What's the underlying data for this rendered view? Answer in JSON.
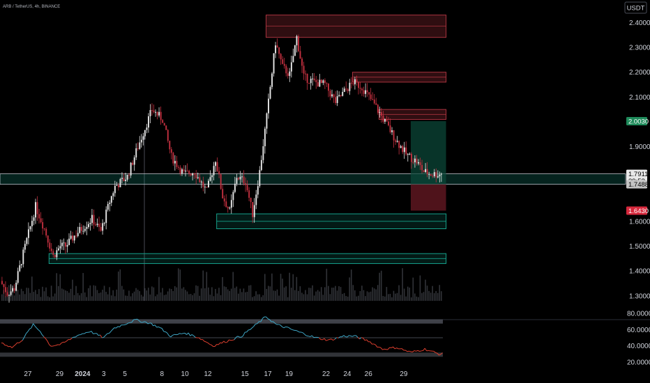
{
  "header": {
    "symbol": "ARB / TetherUS, 4h, BINANCE"
  },
  "currency_button": "USDT",
  "colors": {
    "bg": "#000000",
    "up": "#e8e8e8",
    "down": "#c2303f",
    "demand": "#15a08a",
    "supply": "#a8323e",
    "rsi_up": "#3fa9c9",
    "rsi_down": "#e0402f"
  },
  "price_tags": [
    {
      "value": 2.003,
      "label": "2.0030",
      "color": "#1e8a5a",
      "text_color": "#ffffff"
    },
    {
      "value": 1.7911,
      "label": "1.7911",
      "sublabel": "39:53",
      "color": "#e8e8e8",
      "text_color": "#000000"
    },
    {
      "value": 1.7488,
      "label": "1.7488",
      "color": "#c4c4c4",
      "text_color": "#000000"
    },
    {
      "value": 1.643,
      "label": "1.6430",
      "color": "#d6283c",
      "text_color": "#ffffff"
    }
  ],
  "chart_data": [
    {
      "type": "candlestick",
      "ylim": [
        1.28,
        2.44
      ],
      "y_ticks": [
        "2.4000",
        "2.3000",
        "2.2000",
        "2.1000",
        "1.9000",
        "1.6000",
        "1.5000",
        "1.4000",
        "1.3000"
      ],
      "y_tick_values": [
        2.4,
        2.3,
        2.2,
        2.1,
        1.9,
        1.6,
        1.5,
        1.4,
        1.3
      ],
      "x_ticks": [
        "27",
        "29",
        "2024",
        "3",
        "5",
        "8",
        "10",
        "12",
        "15",
        "17",
        "19",
        "22",
        "24",
        "26",
        "29"
      ],
      "x_tick_positions": [
        15,
        33,
        46,
        58,
        70,
        91,
        104,
        117,
        138,
        151,
        163,
        184,
        196,
        208,
        228
      ],
      "n_bars": 250,
      "waypoints": [
        [
          0,
          1.36
        ],
        [
          4,
          1.31
        ],
        [
          8,
          1.33
        ],
        [
          13,
          1.47
        ],
        [
          20,
          1.66
        ],
        [
          25,
          1.57
        ],
        [
          30,
          1.46
        ],
        [
          34,
          1.5
        ],
        [
          37,
          1.5
        ],
        [
          43,
          1.55
        ],
        [
          52,
          1.61
        ],
        [
          57,
          1.56
        ],
        [
          62,
          1.68
        ],
        [
          65,
          1.74
        ],
        [
          72,
          1.78
        ],
        [
          78,
          1.9
        ],
        [
          86,
          2.05
        ],
        [
          92,
          2.01
        ],
        [
          97,
          1.86
        ],
        [
          104,
          1.79
        ],
        [
          110,
          1.8
        ],
        [
          117,
          1.72
        ],
        [
          122,
          1.85
        ],
        [
          126,
          1.7
        ],
        [
          130,
          1.64
        ],
        [
          134,
          1.78
        ],
        [
          139,
          1.76
        ],
        [
          143,
          1.63
        ],
        [
          147,
          1.8
        ],
        [
          151,
          2.02
        ],
        [
          156,
          2.32
        ],
        [
          160,
          2.22
        ],
        [
          164,
          2.19
        ],
        [
          168,
          2.34
        ],
        [
          172,
          2.18
        ],
        [
          178,
          2.16
        ],
        [
          184,
          2.15
        ],
        [
          190,
          2.08
        ],
        [
          196,
          2.13
        ],
        [
          200,
          2.16
        ],
        [
          205,
          2.14
        ],
        [
          212,
          2.07
        ],
        [
          218,
          2.0
        ],
        [
          224,
          1.93
        ],
        [
          230,
          1.87
        ],
        [
          236,
          1.84
        ],
        [
          240,
          1.8
        ],
        [
          244,
          1.79
        ],
        [
          250,
          1.79
        ]
      ],
      "last_price": 1.7911,
      "supply_zones": [
        {
          "y1": 2.43,
          "y2": 2.34,
          "x_from": 150,
          "x_to": 252
        },
        {
          "y1": 2.2,
          "y2": 2.16,
          "x_from": 199,
          "x_to": 252
        },
        {
          "y1": 2.05,
          "y2": 2.01,
          "x_from": 214,
          "x_to": 252
        }
      ],
      "demand_zones": [
        {
          "y1": 1.63,
          "y2": 1.57,
          "x_from": 122,
          "x_to": 252
        },
        {
          "y1": 1.47,
          "y2": 1.43,
          "x_from": 27,
          "x_to": 252
        }
      ],
      "entry_band": {
        "y1": 1.791,
        "y2": 1.7488,
        "x_from": 0,
        "x_to": 252
      },
      "trade_box": {
        "entry": 1.7488,
        "target": 2.003,
        "stop": 1.643,
        "x_from": 232,
        "x_to": 252
      }
    },
    {
      "type": "line",
      "name": "RSI",
      "ylim": [
        20,
        80
      ],
      "y_ticks": [
        "80.0000",
        "60.0000",
        "40.0000",
        "20.0000"
      ],
      "y_tick_values": [
        80,
        60,
        40,
        20
      ],
      "band_levels": [
        70,
        50,
        30
      ],
      "waypoints": [
        [
          0,
          44
        ],
        [
          6,
          38
        ],
        [
          12,
          48
        ],
        [
          18,
          66
        ],
        [
          22,
          58
        ],
        [
          28,
          40
        ],
        [
          34,
          42
        ],
        [
          42,
          52
        ],
        [
          50,
          58
        ],
        [
          58,
          50
        ],
        [
          64,
          62
        ],
        [
          70,
          67
        ],
        [
          76,
          72
        ],
        [
          84,
          68
        ],
        [
          90,
          62
        ],
        [
          96,
          52
        ],
        [
          104,
          56
        ],
        [
          112,
          50
        ],
        [
          120,
          40
        ],
        [
          128,
          46
        ],
        [
          136,
          52
        ],
        [
          142,
          62
        ],
        [
          150,
          76
        ],
        [
          156,
          66
        ],
        [
          162,
          62
        ],
        [
          170,
          56
        ],
        [
          178,
          50
        ],
        [
          186,
          47
        ],
        [
          194,
          52
        ],
        [
          200,
          52
        ],
        [
          208,
          46
        ],
        [
          216,
          36
        ],
        [
          224,
          38
        ],
        [
          232,
          32
        ],
        [
          240,
          36
        ],
        [
          248,
          30
        ]
      ]
    }
  ]
}
